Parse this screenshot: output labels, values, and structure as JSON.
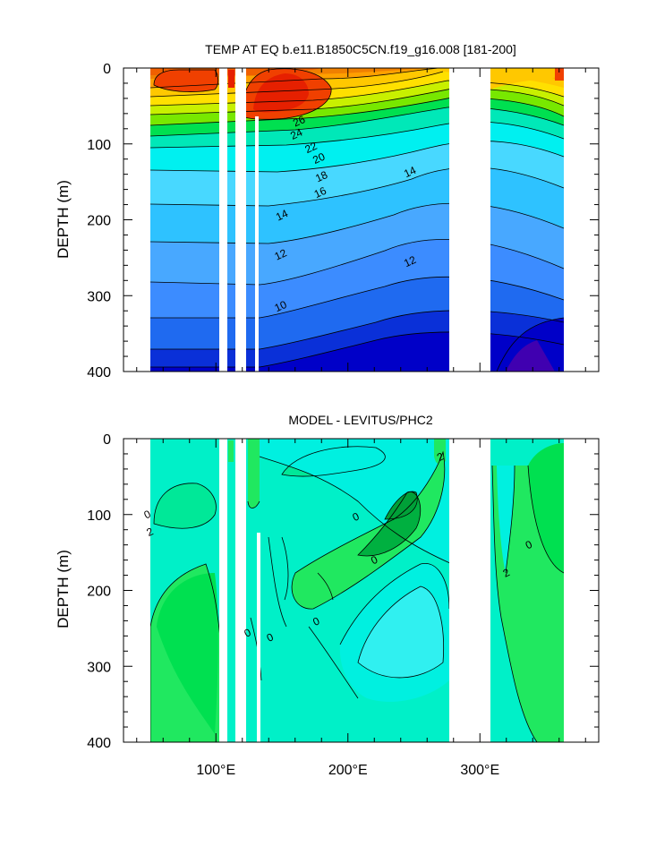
{
  "chart_data": [
    {
      "type": "contour",
      "title": "TEMP AT EQ b.e11.B1850C5CN.f19_g16.008 [181-200]",
      "xlabel": "",
      "ylabel": "DEPTH (m)",
      "xlim": [
        30,
        390
      ],
      "ylim": [
        0,
        400
      ],
      "y_inverted": true,
      "xticks": [
        100,
        200,
        300
      ],
      "xtick_labels": [
        "100°E",
        "200°E",
        "300°E"
      ],
      "yticks": [
        0,
        100,
        200,
        300,
        400
      ],
      "ytick_labels": [
        "0",
        "100",
        "200",
        "300",
        "400"
      ],
      "land_gaps_lon": [
        [
          98,
          108
        ],
        [
          114,
          122
        ],
        [
          126,
          130
        ],
        [
          280,
          312
        ],
        [
          367,
          372
        ]
      ],
      "contour_labels": [
        {
          "text": "26",
          "lon": 163,
          "depth": 70
        },
        {
          "text": "24",
          "lon": 161,
          "depth": 87
        },
        {
          "text": "22",
          "lon": 172,
          "depth": 105
        },
        {
          "text": "20",
          "lon": 178,
          "depth": 119
        },
        {
          "text": "18",
          "lon": 180,
          "depth": 143
        },
        {
          "text": "16",
          "lon": 179,
          "depth": 164
        },
        {
          "text": "14",
          "lon": 150,
          "depth": 194
        },
        {
          "text": "14",
          "lon": 247,
          "depth": 137
        },
        {
          "text": "12",
          "lon": 149,
          "depth": 246
        },
        {
          "text": "12",
          "lon": 247,
          "depth": 255
        },
        {
          "text": "10",
          "lon": 149,
          "depth": 314
        }
      ],
      "colors": [
        "#0000c8",
        "#0a30d8",
        "#1f6af0",
        "#3c8cff",
        "#48a8ff",
        "#2ec2ff",
        "#48d8ff",
        "#00f0f0",
        "#00e8b8",
        "#00e050",
        "#78e800",
        "#c8f000",
        "#ffe000",
        "#ffc800",
        "#ffa000",
        "#f08000",
        "#f06000",
        "#f04000",
        "#e62000"
      ]
    },
    {
      "type": "contour",
      "title": "MODEL - LEVITUS/PHC2",
      "xlabel": "",
      "ylabel": "DEPTH (m)",
      "xlim": [
        30,
        390
      ],
      "ylim": [
        0,
        400
      ],
      "y_inverted": true,
      "xticks": [
        100,
        200,
        300
      ],
      "xtick_labels": [
        "100°E",
        "200°E",
        "300°E"
      ],
      "yticks": [
        0,
        100,
        200,
        300,
        400
      ],
      "ytick_labels": [
        "0",
        "100",
        "200",
        "300",
        "400"
      ],
      "land_gaps_lon": [
        [
          98,
          108
        ],
        [
          114,
          122
        ],
        [
          126,
          130
        ],
        [
          280,
          312
        ],
        [
          367,
          372
        ]
      ],
      "contour_labels": [
        {
          "text": "0",
          "lon": 48,
          "depth": 100
        },
        {
          "text": "2",
          "lon": 50,
          "depth": 123
        },
        {
          "text": "0",
          "lon": 206,
          "depth": 103
        },
        {
          "text": "0",
          "lon": 220,
          "depth": 160
        },
        {
          "text": "0",
          "lon": 176,
          "depth": 241
        },
        {
          "text": "0",
          "lon": 141,
          "depth": 262
        },
        {
          "text": "0",
          "lon": 124,
          "depth": 256
        },
        {
          "text": "2",
          "lon": 320,
          "depth": 177
        },
        {
          "text": "0",
          "lon": 337,
          "depth": 140
        },
        {
          "text": "2",
          "lon": 270,
          "depth": 24
        }
      ],
      "colors": [
        "#00f0c8",
        "#00e898",
        "#00e080",
        "#00f0e0",
        "#20e860",
        "#00e050",
        "#00b040"
      ]
    }
  ]
}
